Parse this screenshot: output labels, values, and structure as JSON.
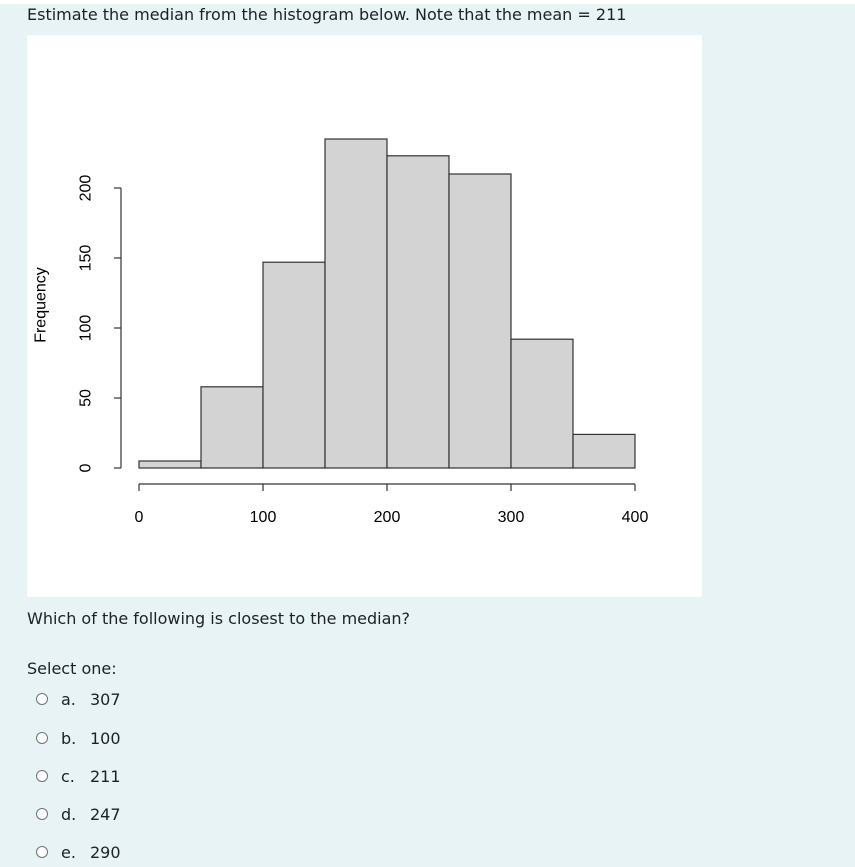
{
  "question": {
    "text": "Estimate the median from the histogram below. Note that the mean = 211",
    "prompt": "Which of the following is closest to the median?",
    "select_label": "Select one:"
  },
  "options": [
    {
      "letter": "a.",
      "value": "307"
    },
    {
      "letter": "b.",
      "value": "100"
    },
    {
      "letter": "c.",
      "value": "211"
    },
    {
      "letter": "d.",
      "value": "247"
    },
    {
      "letter": "e.",
      "value": "290"
    }
  ],
  "colors": {
    "page_bg": "#e7f3f5",
    "bar_fill": "#d3d3d3",
    "bar_stroke": "#333333"
  },
  "chart_data": {
    "type": "bar",
    "title": "",
    "xlabel": "",
    "ylabel": "Frequency",
    "bins": [
      [
        0,
        50
      ],
      [
        50,
        100
      ],
      [
        100,
        150
      ],
      [
        150,
        200
      ],
      [
        200,
        250
      ],
      [
        250,
        300
      ],
      [
        300,
        350
      ],
      [
        350,
        400
      ]
    ],
    "values": [
      5,
      58,
      147,
      235,
      223,
      210,
      92,
      24
    ],
    "xlim": [
      0,
      400
    ],
    "ylim": [
      0,
      200
    ],
    "x_ticks": [
      0,
      100,
      200,
      300,
      400
    ],
    "y_ticks": [
      0,
      50,
      100,
      150,
      200
    ],
    "x_tick_labels": [
      "0",
      "100",
      "200",
      "300",
      "400"
    ],
    "y_tick_labels": [
      "0",
      "50",
      "100",
      "150",
      "200"
    ],
    "grid": false,
    "legend": "none"
  }
}
